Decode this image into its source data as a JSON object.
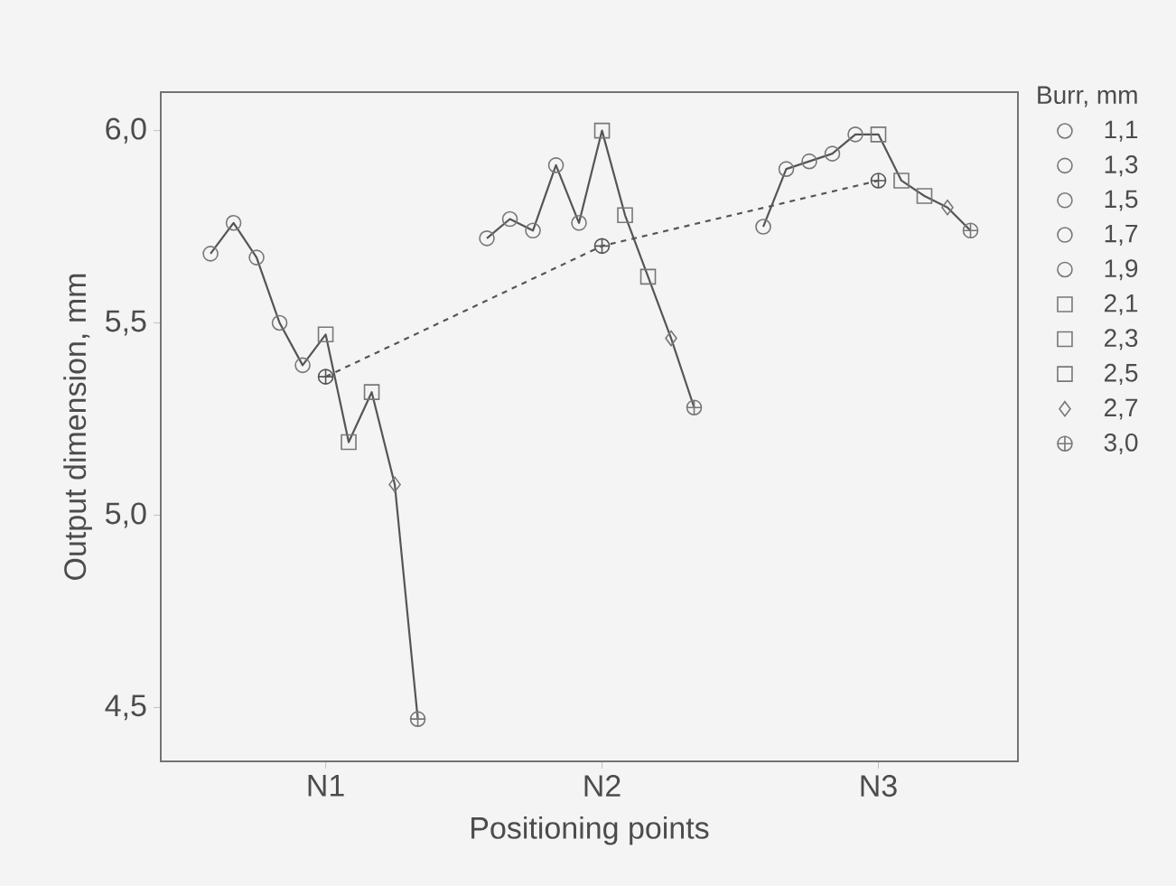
{
  "chart_data": {
    "type": "scatter",
    "xlabel": "Positioning points",
    "ylabel": "Output dimension, mm",
    "legend_title": "Burr, mm",
    "legend": "right",
    "grid": false,
    "categories": [
      null,
      null,
      null,
      null,
      null,
      "N1",
      null,
      null,
      null,
      null,
      null,
      null,
      null,
      null,
      null,
      null,
      null,
      "N2",
      null,
      null,
      null,
      null,
      null,
      null,
      null,
      null,
      null,
      null,
      null,
      "N3",
      null,
      null,
      null,
      null
    ],
    "ylim": [
      4.36,
      6.1
    ],
    "yticks": [
      {
        "value": 4.5,
        "label": "4,5"
      },
      {
        "value": 5.0,
        "label": "5,0"
      },
      {
        "value": 5.5,
        "label": "5,5"
      },
      {
        "value": 6.0,
        "label": "6,0"
      }
    ],
    "series": [
      {
        "name": "1,1",
        "marker": "circle",
        "color": "#777777",
        "values": [
          5.68,
          null,
          null,
          null,
          null,
          null,
          null,
          null,
          null,
          null,
          null,
          null,
          5.72,
          null,
          null,
          null,
          null,
          null,
          null,
          null,
          null,
          null,
          null,
          null,
          5.75,
          null,
          null,
          null,
          null,
          null,
          null,
          null,
          null,
          null
        ]
      },
      {
        "name": "1,3",
        "marker": "circle",
        "color": "#777777",
        "values": [
          null,
          5.76,
          null,
          null,
          null,
          null,
          null,
          null,
          null,
          null,
          null,
          null,
          null,
          5.77,
          null,
          null,
          null,
          null,
          null,
          null,
          null,
          null,
          null,
          null,
          null,
          5.9,
          null,
          null,
          null,
          null,
          null,
          null,
          null,
          null
        ]
      },
      {
        "name": "1,5",
        "marker": "circle",
        "color": "#777777",
        "values": [
          null,
          null,
          5.67,
          null,
          null,
          null,
          null,
          null,
          null,
          null,
          null,
          null,
          null,
          null,
          5.74,
          null,
          null,
          null,
          null,
          null,
          null,
          null,
          null,
          null,
          null,
          null,
          5.92,
          null,
          null,
          null,
          null,
          null,
          null,
          null
        ]
      },
      {
        "name": "1,7",
        "marker": "circle",
        "color": "#777777",
        "values": [
          null,
          null,
          null,
          5.5,
          null,
          null,
          null,
          null,
          null,
          null,
          null,
          null,
          null,
          null,
          null,
          5.91,
          null,
          null,
          null,
          null,
          null,
          null,
          null,
          null,
          null,
          null,
          null,
          5.94,
          null,
          null,
          null,
          null,
          null,
          null
        ]
      },
      {
        "name": "1,9",
        "marker": "circle",
        "color": "#777777",
        "values": [
          null,
          null,
          null,
          null,
          5.39,
          null,
          null,
          null,
          null,
          null,
          null,
          null,
          null,
          null,
          null,
          null,
          5.76,
          null,
          null,
          null,
          null,
          null,
          null,
          null,
          null,
          null,
          null,
          null,
          5.99,
          null,
          null,
          null,
          null,
          null
        ]
      },
      {
        "name": "2,1",
        "marker": "square",
        "color": "#777777",
        "values": [
          null,
          null,
          null,
          null,
          null,
          5.47,
          null,
          null,
          null,
          null,
          null,
          null,
          null,
          null,
          null,
          null,
          null,
          6.0,
          null,
          null,
          null,
          null,
          null,
          null,
          null,
          null,
          null,
          null,
          null,
          5.99,
          null,
          null,
          null,
          null
        ]
      },
      {
        "name": "2,3",
        "marker": "square",
        "color": "#777777",
        "values": [
          null,
          null,
          null,
          null,
          null,
          null,
          5.19,
          null,
          null,
          null,
          null,
          null,
          null,
          null,
          null,
          null,
          null,
          null,
          5.78,
          null,
          null,
          null,
          null,
          null,
          null,
          null,
          null,
          null,
          null,
          null,
          5.87,
          null,
          null,
          null
        ]
      },
      {
        "name": "2,5",
        "marker": "square",
        "color": "#777777",
        "values": [
          null,
          null,
          null,
          null,
          null,
          null,
          null,
          5.32,
          null,
          null,
          null,
          null,
          null,
          null,
          null,
          null,
          null,
          null,
          null,
          5.62,
          null,
          null,
          null,
          null,
          null,
          null,
          null,
          null,
          null,
          null,
          null,
          5.83,
          null,
          null
        ]
      },
      {
        "name": "2,7",
        "marker": "diamond",
        "color": "#777777",
        "values": [
          null,
          null,
          null,
          null,
          null,
          null,
          null,
          null,
          5.08,
          null,
          null,
          null,
          null,
          null,
          null,
          null,
          null,
          null,
          null,
          null,
          5.46,
          null,
          null,
          null,
          null,
          null,
          null,
          null,
          null,
          null,
          null,
          null,
          5.8,
          null
        ]
      },
      {
        "name": "3,0",
        "marker": "cross",
        "color": "#777777",
        "values": [
          null,
          null,
          null,
          null,
          null,
          null,
          null,
          null,
          null,
          4.47,
          null,
          null,
          null,
          null,
          null,
          null,
          null,
          null,
          null,
          null,
          null,
          5.28,
          null,
          null,
          null,
          null,
          null,
          null,
          null,
          null,
          null,
          null,
          null,
          5.74
        ]
      },
      {
        "type": "line",
        "marker": "none",
        "line_style": "solid",
        "color": "#555555",
        "values": [
          5.68,
          5.76,
          5.67,
          5.5,
          5.39,
          5.47,
          5.19,
          5.32,
          5.08,
          4.47,
          null,
          null,
          5.72,
          5.77,
          5.74,
          5.91,
          5.76,
          6.0,
          5.78,
          5.62,
          5.46,
          5.28,
          null,
          null,
          5.75,
          5.9,
          5.92,
          5.94,
          5.99,
          5.99,
          5.87,
          5.83,
          5.8,
          5.74
        ]
      },
      {
        "type": "line",
        "marker": "cross",
        "line_style": "dashed",
        "color": "#555555",
        "x": [
          "N1",
          "N2",
          "N3"
        ],
        "values": [
          5.36,
          5.7,
          5.87
        ]
      }
    ]
  }
}
